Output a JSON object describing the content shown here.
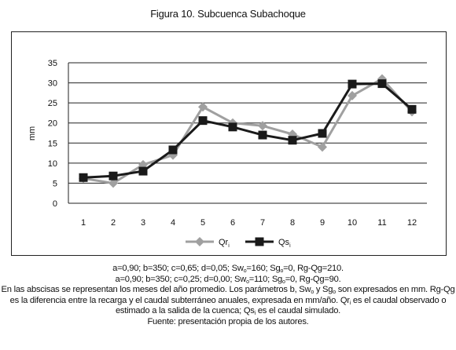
{
  "figure": {
    "title": "Figura 10. Subcuenca Subachoque"
  },
  "chart_data": {
    "type": "line",
    "title": "Figura 10. Subcuenca Subachoque",
    "xlabel": "",
    "ylabel": "mm",
    "categories": [
      "1",
      "2",
      "3",
      "4",
      "5",
      "6",
      "7",
      "8",
      "9",
      "10",
      "11",
      "12"
    ],
    "ylim": [
      0,
      35
    ],
    "yticks": [
      0,
      5,
      10,
      15,
      20,
      25,
      30,
      35
    ],
    "grid": "horizontal",
    "legend_position": "bottom",
    "series": [
      {
        "name": "Qr",
        "name_sub": "i",
        "color": "#a0a0a0",
        "marker": "diamond",
        "values": [
          6.2,
          5.0,
          9.6,
          12.0,
          24.0,
          20.0,
          19.3,
          17.2,
          14.0,
          26.8,
          31.0,
          22.8
        ]
      },
      {
        "name": "Qs",
        "name_sub": "i",
        "color": "#1a1a1a",
        "marker": "square",
        "values": [
          6.4,
          6.8,
          8.0,
          13.3,
          20.6,
          19.0,
          17.0,
          15.7,
          17.4,
          29.7,
          29.8,
          23.4
        ]
      }
    ]
  },
  "caption": {
    "line1": "a=0,90; b=350; c=0,65; d=0,05; Sw",
    "line1_sub": "o",
    "line1_b": "=160; Sg",
    "line1_b_sub": "o",
    "line1_c": "=0, Rg-Qg=210.",
    "line2": "a=0,90; b=350; c=0,25; d=0,00; Sw",
    "line2_sub": "o",
    "line2_b": "=110; Sg",
    "line2_b_sub": "o",
    "line2_c": "=0, Rg-Qg=90.",
    "line3_a": "En las abscisas se representan los meses del año promedio. Los parámetros b, Sw",
    "line3_sub1": "o",
    "line3_b": " y Sg",
    "line3_sub2": "o",
    "line3_c": " son expresados en mm. Rg-Qg",
    "line4_a": "es la diferencia entre la recarga y el caudal subterráneo anuales, expresada en mm/año. Qr",
    "line4_sub": "i",
    "line4_b": " es el caudal observado o",
    "line5_a": "estimado a la salida de la cuenca; Qs",
    "line5_sub": "i",
    "line5_b": " es el caudal simulado.",
    "line6": "Fuente: presentación propia de los autores."
  }
}
